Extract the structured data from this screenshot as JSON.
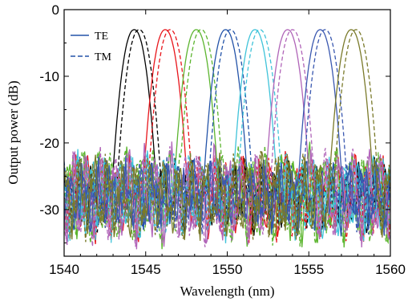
{
  "chart_data": {
    "type": "line",
    "title": "",
    "xlabel": "Wavelength (nm)",
    "ylabel": "Output power (dB)",
    "xlim": [
      1540,
      1560
    ],
    "ylim": [
      -37,
      0
    ],
    "x_ticks": [
      1540,
      1545,
      1550,
      1555,
      1560
    ],
    "y_ticks": [
      0,
      -10,
      -20,
      -30
    ],
    "grid": false,
    "legend": {
      "placement": "top-left",
      "entries": [
        {
          "label": "TE",
          "style": "solid"
        },
        {
          "label": "TM",
          "style": "dashed"
        }
      ]
    },
    "channels": [
      {
        "color": "#000000",
        "peak_te": 1544.3,
        "peak_tm": 1544.6,
        "peak_db": -3.0
      },
      {
        "color": "#e8151b",
        "peak_te": 1546.2,
        "peak_tm": 1546.5,
        "peak_db": -3.0
      },
      {
        "color": "#5cb52f",
        "peak_te": 1548.1,
        "peak_tm": 1548.4,
        "peak_db": -3.0
      },
      {
        "color": "#2353a8",
        "peak_te": 1549.9,
        "peak_tm": 1550.2,
        "peak_db": -3.0
      },
      {
        "color": "#3fc3d9",
        "peak_te": 1551.7,
        "peak_tm": 1552.0,
        "peak_db": -3.0
      },
      {
        "color": "#b064b8",
        "peak_te": 1553.7,
        "peak_tm": 1554.0,
        "peak_db": -3.0
      },
      {
        "color": "#3a58b0",
        "peak_te": 1555.7,
        "peak_tm": 1556.0,
        "peak_db": -3.0
      },
      {
        "color": "#7a7a2a",
        "peak_te": 1557.6,
        "peak_tm": 1557.9,
        "peak_db": -3.0
      }
    ],
    "floor_db": -30
  }
}
